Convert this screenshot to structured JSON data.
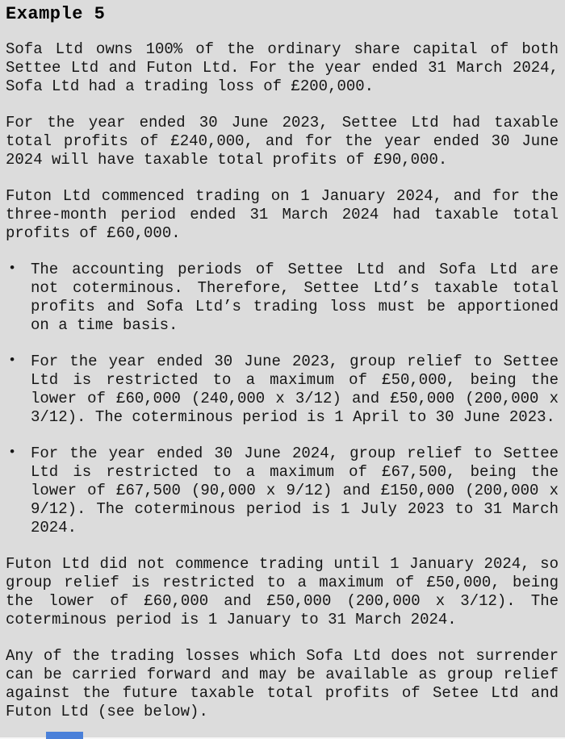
{
  "page": {
    "background_color": "#dcdcdc",
    "text_color": "#161616",
    "heading_color": "#000000",
    "bottom_strip_color": "#f7f7f7",
    "partial_element_color": "#4a80d9"
  },
  "heading": "Example 5",
  "bullet_glyph": "•",
  "blocks": [
    {
      "type": "paragraph",
      "lines": [
        "Sofa Ltd owns 100% of the ordinary share capital of both",
        "Settee Ltd and Futon Ltd. For the year ended 31 March 2024,",
        "Sofa Ltd had a trading loss of £200,000."
      ]
    },
    {
      "type": "paragraph",
      "lines": [
        "For the year ended 30 June 2023, Settee Ltd had taxable",
        "total profits of £240,000, and for the year ended 30 June",
        "2024 will have taxable total profits of £90,000."
      ]
    },
    {
      "type": "paragraph",
      "lines": [
        "Futon Ltd commenced trading on 1 January 2024, and for the",
        "three-month period ended 31 March 2024 had taxable total",
        "profits of £60,000."
      ]
    },
    {
      "type": "bullet",
      "lines": [
        "The accounting periods of Settee Ltd and Sofa Ltd are",
        "not coterminous. Therefore, Settee Ltd’s taxable total",
        "profits and Sofa Ltd’s trading loss must be apportioned",
        "on a time basis."
      ]
    },
    {
      "type": "bullet",
      "lines": [
        "For the year ended 30 June 2023, group relief to Settee",
        "Ltd is restricted to a maximum of £50,000, being the",
        "lower of £60,000 (240,000 x 3/12) and £50,000 (200,000 x",
        "3/12). The coterminous period is 1 April to 30 June 2023."
      ]
    },
    {
      "type": "bullet",
      "lines": [
        "For the year ended 30 June 2024, group relief to Settee",
        "Ltd is restricted to a maximum of £67,500, being the",
        "lower of £67,500 (90,000 x 9/12) and £150,000 (200,000 x",
        "9/12). The coterminous period is 1 July 2023 to 31 March",
        "2024."
      ]
    },
    {
      "type": "paragraph",
      "lines": [
        "Futon Ltd did not commence trading until 1 January 2024, so",
        "group relief is restricted to a maximum of £50,000, being",
        "the lower of £60,000 and £50,000 (200,000 x 3/12). The",
        "coterminous period is 1 January to 31 March 2024."
      ]
    },
    {
      "type": "paragraph",
      "lines": [
        "Any of the trading losses which Sofa Ltd does not surrender",
        "can be carried forward and may be available as group relief",
        "against the future taxable total profits of Setee Ltd and",
        "Futon Ltd (see below)."
      ]
    }
  ]
}
